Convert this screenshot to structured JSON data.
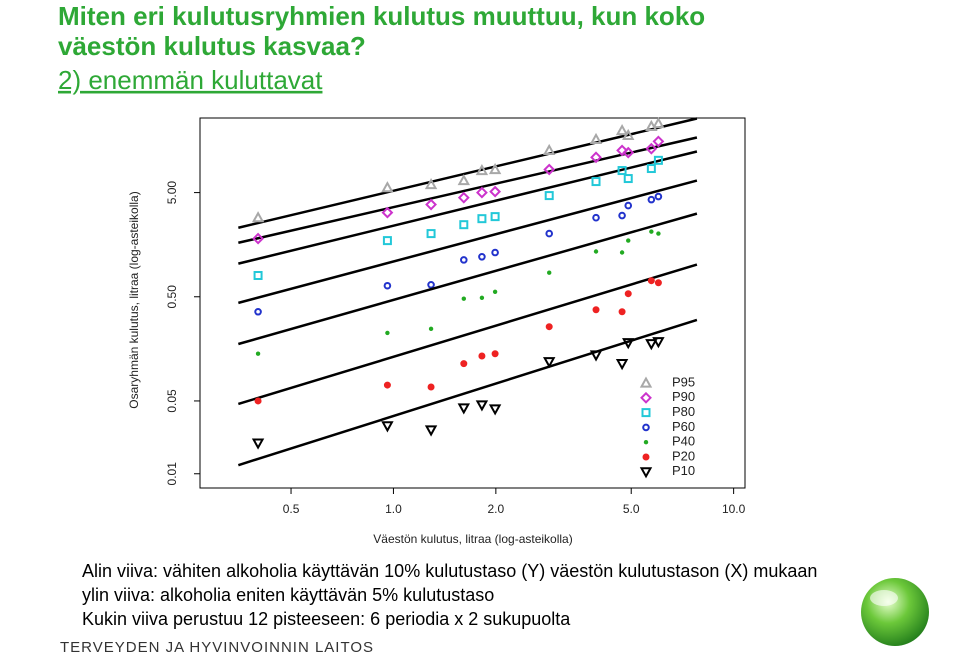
{
  "title": [
    "Miten eri kulutusryhmien kulutus muuttuu, kun koko",
    "väestön kulutus kasvaa?"
  ],
  "subtitle": "2) enemmän kuluttavat",
  "chart_data": {
    "type": "scatter",
    "x_label": "Väestön kulutus, litraa (log-asteikolla)",
    "y_label": "Osaryhmän kulutus, litraa (log-asteikolla)",
    "x_log": true,
    "y_log": true,
    "legend": "lower right",
    "xlim": [
      0.27,
      10.8
    ],
    "ylim": [
      0.0073,
      26
    ],
    "xticks": [
      0.5,
      {
        "value": 1,
        "label": "1.0"
      },
      {
        "value": 2,
        "label": "2.0"
      },
      {
        "value": 5,
        "label": "5.0"
      },
      {
        "value": 10,
        "label": "10.0"
      }
    ],
    "yticks": [
      {
        "value": 0.01,
        "label": "0.01"
      },
      {
        "value": 0.05,
        "label": "0.05"
      },
      {
        "value": 0.5,
        "label": "0.50"
      },
      {
        "value": 5,
        "label": "5.00"
      }
    ],
    "x": [
      0.4,
      0.96,
      1.29,
      1.61,
      1.82,
      1.99,
      2.87,
      3.94,
      4.7,
      4.9,
      5.73,
      6.01
    ],
    "series": [
      {
        "name": "P95",
        "color": "#a8a8a8",
        "marker": "triangle-up",
        "values": [
          2.87,
          5.58,
          5.97,
          6.52,
          8.14,
          8.33,
          12.7,
          16.2,
          19.7,
          17.7,
          21.6,
          23.0
        ],
        "fit": {
          "x": [
            0.35,
            7.8
          ],
          "y": [
            2.3,
            25.7
          ]
        }
      },
      {
        "name": "P90",
        "color": "#cc33cc",
        "marker": "diamond",
        "values": [
          1.81,
          3.21,
          3.84,
          4.47,
          5.0,
          5.11,
          8.33,
          10.9,
          12.7,
          12.1,
          13.2,
          15.5
        ],
        "fit": {
          "x": [
            0.35,
            7.8
          ],
          "y": [
            1.65,
            16.9
          ]
        }
      },
      {
        "name": "P80",
        "color": "#22c8d8",
        "marker": "square",
        "values": [
          0.8,
          1.73,
          2.02,
          2.46,
          2.81,
          2.94,
          4.68,
          6.38,
          8.14,
          6.82,
          8.51,
          10.2
        ],
        "fit": {
          "x": [
            0.35,
            7.8
          ],
          "y": [
            1.04,
            12.4
          ]
        }
      },
      {
        "name": "P60",
        "color": "#2233cc",
        "marker": "circle",
        "values": [
          0.359,
          0.638,
          0.652,
          1.13,
          1.21,
          1.33,
          2.02,
          2.87,
          3.01,
          3.75,
          4.28,
          4.58
        ],
        "fit": {
          "x": [
            0.35,
            7.8
          ],
          "y": [
            0.437,
            6.52
          ]
        }
      },
      {
        "name": "P40",
        "color": "#22aa22",
        "marker": "dot",
        "values": [
          0.142,
          0.225,
          0.246,
          0.479,
          0.489,
          0.558,
          0.851,
          1.36,
          1.33,
          1.73,
          2.11,
          2.02
        ],
        "fit": {
          "x": [
            0.35,
            7.8
          ],
          "y": [
            0.176,
            3.14
          ]
        }
      },
      {
        "name": "P20",
        "color": "#ee2222",
        "marker": "star",
        "values": [
          0.05,
          0.071,
          0.068,
          0.114,
          0.135,
          0.142,
          0.258,
          0.375,
          0.359,
          0.535,
          0.713,
          0.682
        ],
        "fit": {
          "x": [
            0.35,
            7.8
          ],
          "y": [
            0.0468,
            1.02
          ]
        }
      },
      {
        "name": "P10",
        "color": "#000000",
        "marker": "triangle-down",
        "values": [
          0.0197,
          0.0288,
          0.0263,
          0.0428,
          0.0458,
          0.0419,
          0.119,
          0.138,
          0.114,
          0.181,
          0.177,
          0.185
        ],
        "fit": {
          "x": [
            0.35,
            7.8
          ],
          "y": [
            0.0121,
            0.3
          ]
        }
      }
    ]
  },
  "notes": [
    "Alin viiva: vähiten alkoholia käyttävän 10% kulutustaso (Y) väestön kulutustason (X) mukaan",
    "ylin viiva: alkoholia eniten käyttävän 5% kulutustaso",
    "Kukin viiva perustuu 12 pisteeseen: 6 periodia x 2 sukupuolta"
  ],
  "footer": "TERVEYDEN JA HYVINVOINNIN LAITOS"
}
